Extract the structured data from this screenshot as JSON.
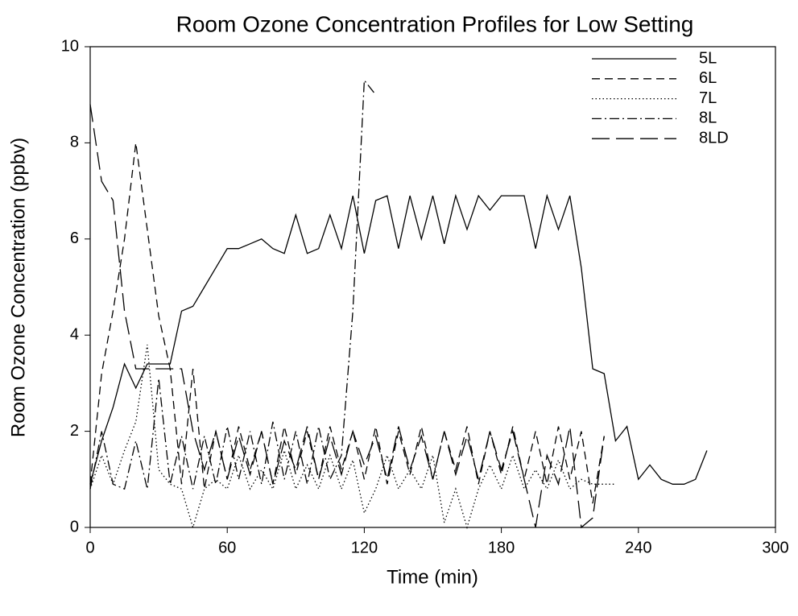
{
  "chart_data": {
    "type": "line",
    "title": "Room Ozone Concentration Profiles for Low Setting",
    "xlabel": "Time (min)",
    "ylabel": "Room Ozone Concentration (ppbv)",
    "x": [
      0,
      5,
      10,
      15,
      20,
      25,
      30,
      35,
      40,
      45,
      50,
      55,
      60,
      65,
      70,
      75,
      80,
      85,
      90,
      95,
      100,
      105,
      110,
      115,
      120,
      125,
      130,
      135,
      140,
      145,
      150,
      155,
      160,
      165,
      170,
      175,
      180,
      185,
      190,
      195,
      200,
      205,
      210,
      215,
      220,
      225,
      230,
      235,
      240,
      245,
      250,
      255,
      260,
      265,
      270
    ],
    "series": [
      {
        "name": "5L",
        "color": "#000000",
        "dash": "none",
        "values": [
          0.9,
          1.8,
          2.5,
          3.4,
          2.9,
          3.4,
          3.4,
          3.4,
          4.5,
          4.6,
          5.0,
          5.4,
          5.8,
          5.8,
          5.9,
          6.0,
          5.8,
          5.7,
          6.5,
          5.7,
          5.8,
          6.5,
          5.8,
          6.9,
          5.7,
          6.8,
          6.9,
          5.8,
          6.9,
          6.0,
          6.9,
          5.9,
          6.9,
          6.2,
          6.9,
          6.6,
          6.9,
          6.9,
          6.9,
          5.8,
          6.9,
          6.2,
          6.9,
          5.4,
          3.3,
          3.2,
          1.8,
          2.1,
          1.0,
          1.3,
          1.0,
          0.9,
          0.9,
          1.0,
          1.6
        ]
      },
      {
        "name": "6L",
        "color": "#000000",
        "dash": "10,6",
        "values": [
          0.9,
          3.2,
          4.5,
          6.0,
          8.0,
          6.2,
          4.4,
          3.3,
          0.9,
          3.3,
          0.8,
          2.0,
          1.0,
          2.1,
          1.2,
          2.0,
          0.9,
          2.1,
          1.1,
          2.0,
          1.0,
          2.1,
          1.2,
          2.0,
          1.0,
          2.1,
          0.9,
          2.0,
          1.1,
          2.1,
          1.0,
          2.0,
          1.2,
          2.1,
          0.9,
          2.0,
          1.1,
          2.1,
          1.0,
          2.0,
          0.9,
          2.1,
          1.0,
          2.0,
          0.5,
          1.9,
          null,
          null,
          null,
          null,
          null,
          null,
          null,
          null,
          null
        ]
      },
      {
        "name": "7L",
        "color": "#000000",
        "dash": "1.5,3",
        "values": [
          0.8,
          1.5,
          0.9,
          1.6,
          2.2,
          3.8,
          1.2,
          0.9,
          0.8,
          0.0,
          0.8,
          1.0,
          0.8,
          1.5,
          0.8,
          1.2,
          0.8,
          1.6,
          0.8,
          1.3,
          0.8,
          1.5,
          0.8,
          1.4,
          0.3,
          0.8,
          1.5,
          0.8,
          1.2,
          0.8,
          1.5,
          0.1,
          0.8,
          0.0,
          0.8,
          1.3,
          0.8,
          1.5,
          0.8,
          1.2,
          0.8,
          1.4,
          0.8,
          1.0,
          0.9,
          0.9,
          0.9,
          null,
          null,
          null,
          null,
          null,
          null,
          null,
          null
        ]
      },
      {
        "name": "8L",
        "color": "#000000",
        "dash": "12,4,2,4",
        "values": [
          0.8,
          2.0,
          0.9,
          0.8,
          1.8,
          0.8,
          3.1,
          0.9,
          1.9,
          0.8,
          1.9,
          0.9,
          2.1,
          1.0,
          2.0,
          0.9,
          2.2,
          1.0,
          2.0,
          0.9,
          2.1,
          1.0,
          1.5,
          4.5,
          9.3,
          9.0,
          null,
          null,
          null,
          null,
          null,
          null,
          null,
          null,
          null,
          null,
          null,
          null,
          null,
          null,
          null,
          null,
          null,
          null,
          null,
          null,
          null,
          null,
          null,
          null,
          null,
          null,
          null,
          null,
          null
        ]
      },
      {
        "name": "8LD",
        "color": "#000000",
        "dash": "22,8",
        "values": [
          8.8,
          7.2,
          6.8,
          4.5,
          3.3,
          3.3,
          3.3,
          3.3,
          3.3,
          2.0,
          1.2,
          2.0,
          1.0,
          1.9,
          1.1,
          2.0,
          0.9,
          1.8,
          1.2,
          2.1,
          1.0,
          1.9,
          1.1,
          2.0,
          1.3,
          1.9,
          1.0,
          2.1,
          1.2,
          1.9,
          1.0,
          2.0,
          1.1,
          1.9,
          1.0,
          2.0,
          1.2,
          2.0,
          1.0,
          0.0,
          1.5,
          0.9,
          2.1,
          0.0,
          0.2,
          1.9,
          null,
          null,
          null,
          null,
          null,
          null,
          null,
          null,
          null
        ]
      }
    ],
    "xlim": [
      0,
      300
    ],
    "xticks": [
      0,
      60,
      120,
      180,
      240,
      300
    ],
    "ylim": [
      0,
      10
    ],
    "yticks": [
      0,
      2,
      4,
      6,
      8,
      10
    ],
    "grid": false,
    "legend": "upper right"
  }
}
